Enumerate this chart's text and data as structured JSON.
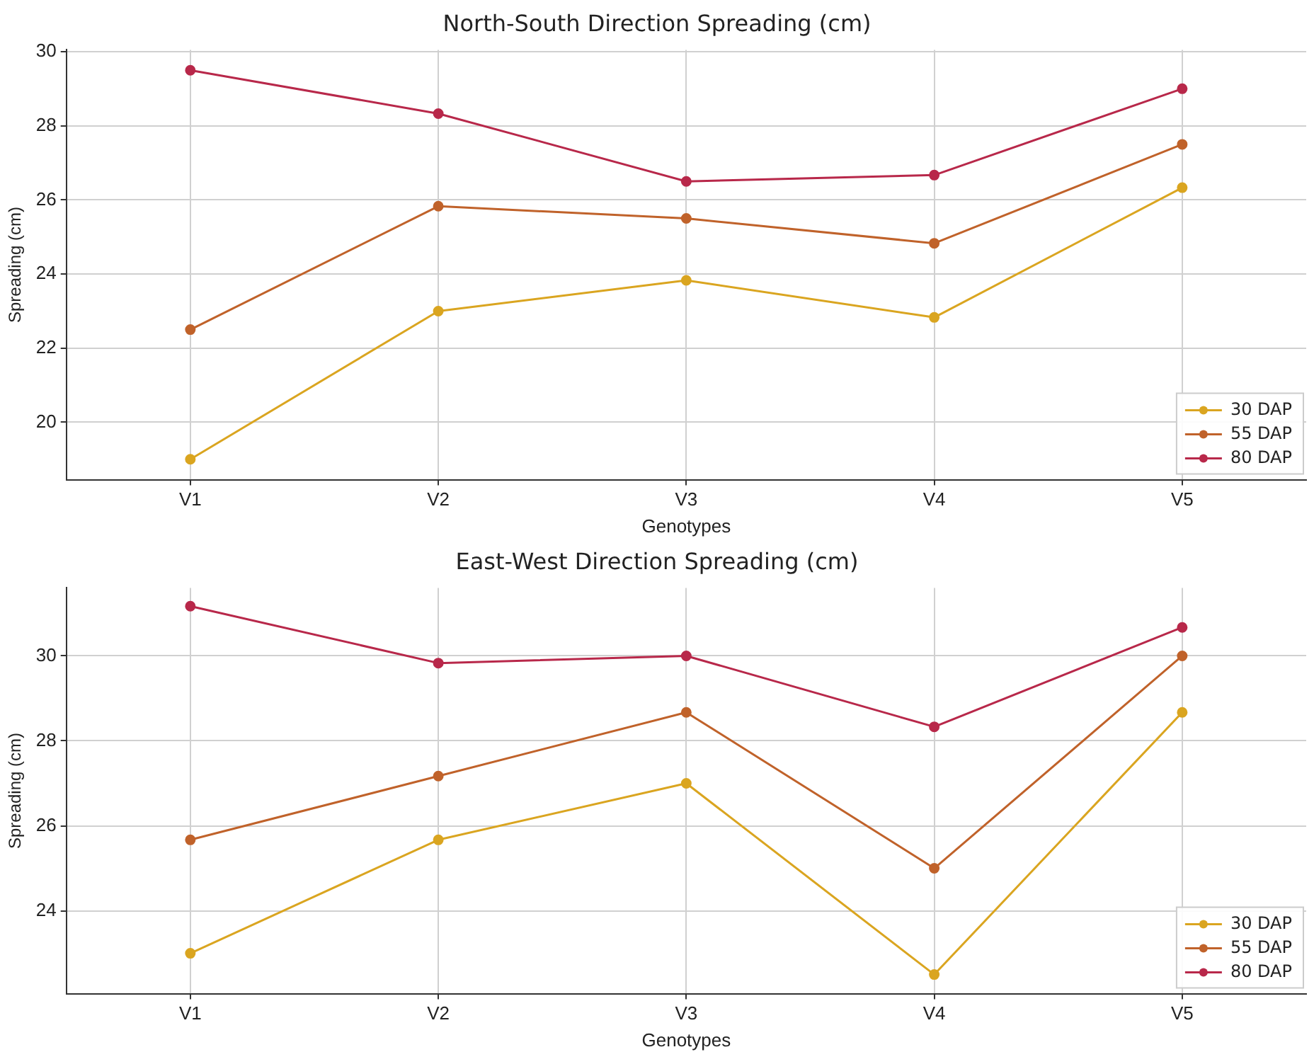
{
  "chart_data": [
    {
      "type": "line",
      "title": "North-South Direction Spreading (cm)",
      "xlabel": "Genotypes",
      "ylabel": "Spreading (cm)",
      "categories": [
        "V1",
        "V2",
        "V3",
        "V4",
        "V5"
      ],
      "ylim": [
        18.45,
        30.05
      ],
      "yticks": [
        20,
        22,
        24,
        26,
        28,
        30
      ],
      "grid": true,
      "legend": "bottom right",
      "marker": "circle",
      "series": [
        {
          "name": "30 DAP",
          "color": "#daa520",
          "values": [
            19,
            23,
            23.83,
            22.83,
            26.33
          ]
        },
        {
          "name": "55 DAP",
          "color": "#c0622a",
          "values": [
            22.5,
            25.83,
            25.5,
            24.83,
            27.5
          ]
        },
        {
          "name": "80 DAP",
          "color": "#b8284a",
          "values": [
            29.5,
            28.33,
            26.5,
            26.67,
            29
          ]
        }
      ]
    },
    {
      "type": "line",
      "title": "East-West Direction Spreading (cm)",
      "xlabel": "Genotypes",
      "ylabel": "Spreading (cm)",
      "categories": [
        "V1",
        "V2",
        "V3",
        "V4",
        "V5"
      ],
      "ylim": [
        22.05,
        31.6
      ],
      "yticks": [
        24,
        26,
        28,
        30
      ],
      "grid": true,
      "legend": "bottom right",
      "marker": "circle",
      "series": [
        {
          "name": "30 DAP",
          "color": "#daa520",
          "values": [
            23,
            25.67,
            27,
            22.5,
            28.67
          ]
        },
        {
          "name": "55 DAP",
          "color": "#c0622a",
          "values": [
            25.67,
            27.17,
            28.67,
            25,
            30
          ]
        },
        {
          "name": "80 DAP",
          "color": "#b8284a",
          "values": [
            31.17,
            29.83,
            30,
            28.33,
            30.67
          ]
        }
      ]
    }
  ]
}
